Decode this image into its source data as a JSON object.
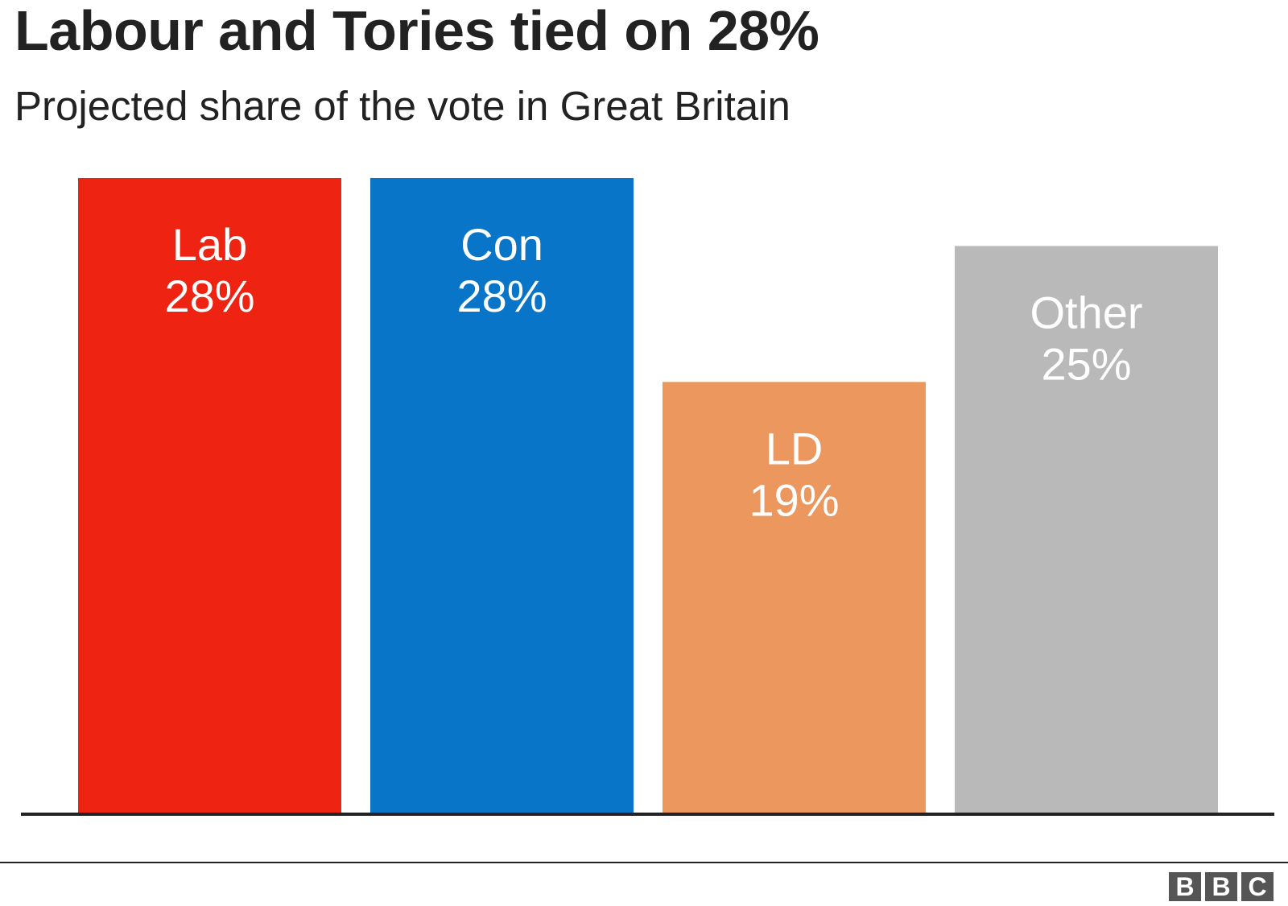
{
  "title": "Labour and Tories tied on 28%",
  "subtitle": "Projected share of the vote in Great Britain",
  "logo": [
    "B",
    "B",
    "C"
  ],
  "chart_data": {
    "type": "bar",
    "title": "Labour and Tories tied on 28%",
    "subtitle": "Projected share of the vote in Great Britain",
    "categories": [
      "Lab",
      "Con",
      "LD",
      "Other"
    ],
    "values": [
      28,
      28,
      19,
      25
    ],
    "value_labels": [
      "28%",
      "28%",
      "19%",
      "25%"
    ],
    "colors": [
      "#ee2311",
      "#0875c9",
      "#eb975e",
      "#b9b9b9"
    ],
    "ylim": [
      0,
      28
    ],
    "grid": false,
    "legend": "none"
  }
}
